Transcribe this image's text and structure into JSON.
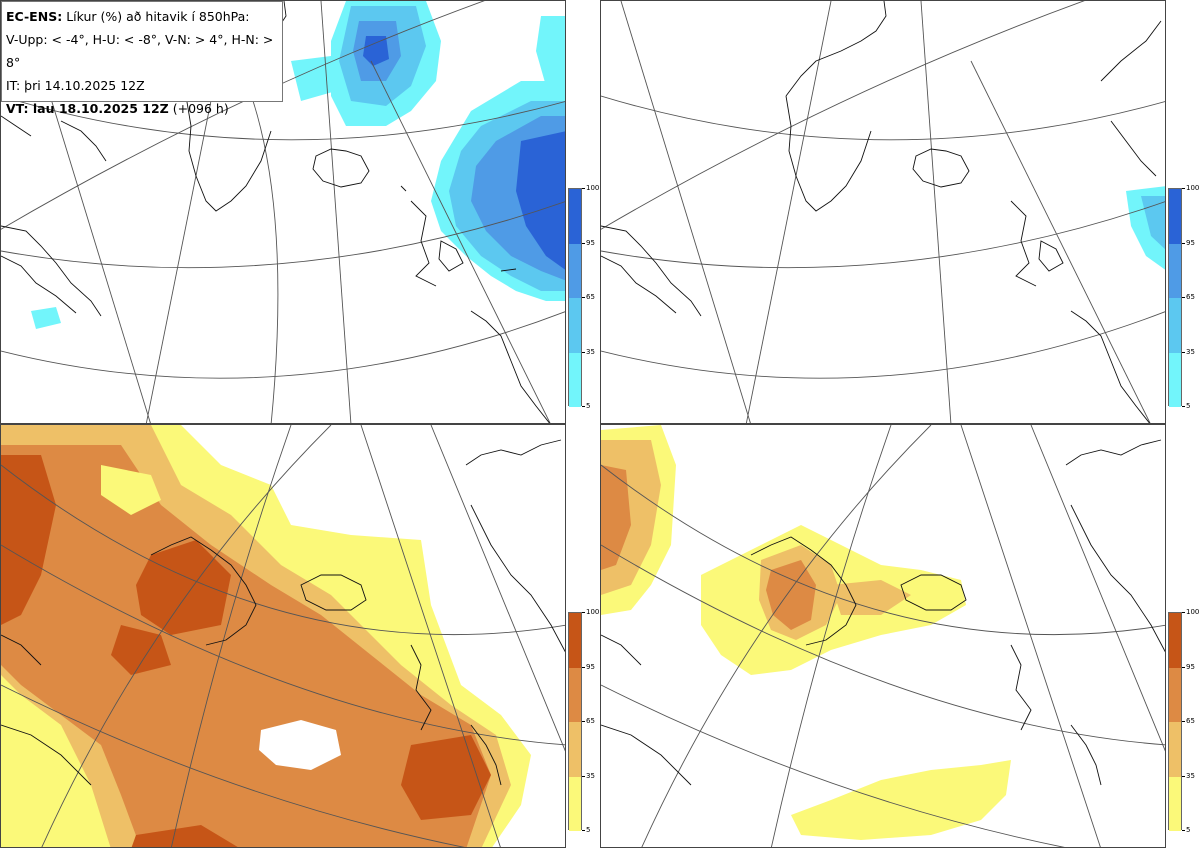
{
  "info": {
    "model": "EC-ENS:",
    "title": "Líkur (%) að hitavik í 850hPa:",
    "thresholds": "V-Upp: < -4°, H-U: < -8°, V-N: > 4°, H-N: > 8°",
    "init_time": "IT: þri 14.10.2025 12Z",
    "valid_label": "VT: lau 18.10.2025 12Z",
    "valid_offset": "(+096 h)"
  },
  "colorbars": {
    "ticks": [
      "100",
      "95",
      "65",
      "35",
      "5"
    ],
    "cold_colors": [
      "#2a63d6",
      "#4f9be6",
      "#5cc8f0",
      "#72f5fb"
    ],
    "warm_colors": [
      "#c65517",
      "#dd8a44",
      "#eec067",
      "#fbf979"
    ]
  },
  "panels": [
    {
      "id": "upper-left",
      "label": "V-Upp",
      "scheme": "cold"
    },
    {
      "id": "upper-right",
      "label": "H-U",
      "scheme": "cold"
    },
    {
      "id": "lower-left",
      "label": "V-N",
      "scheme": "warm"
    },
    {
      "id": "lower-right",
      "label": "H-N",
      "scheme": "warm"
    }
  ]
}
